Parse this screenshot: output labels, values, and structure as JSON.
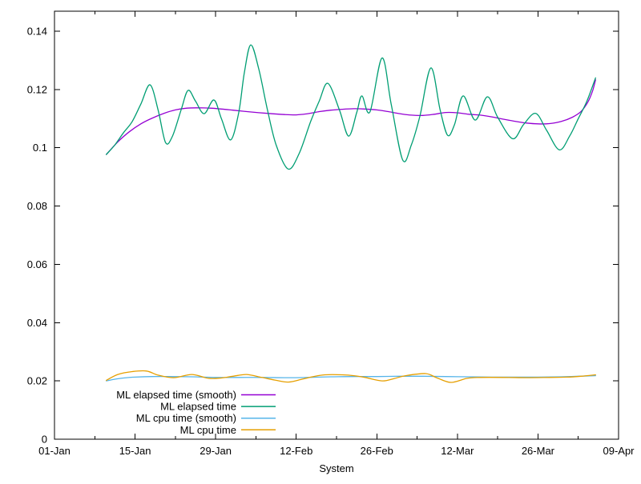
{
  "colors": {
    "background": "#ffffff",
    "axis": "#000000",
    "series_smooth_elapsed": "#9400D3",
    "series_elapsed": "#009E73",
    "series_smooth_cpu": "#56B4E9",
    "series_cpu": "#E69F00"
  },
  "chart_data": {
    "type": "line",
    "title": "",
    "xlabel": "System",
    "ylabel": "",
    "grid": false,
    "legend_position": "bottom-left-inside",
    "x_axis": {
      "unit": "date",
      "range_days": [
        0,
        98
      ],
      "ticks": [
        {
          "label": "01-Jan",
          "day": 0
        },
        {
          "label": "15-Jan",
          "day": 14
        },
        {
          "label": "29-Jan",
          "day": 28
        },
        {
          "label": "12-Feb",
          "day": 42
        },
        {
          "label": "26-Feb",
          "day": 56
        },
        {
          "label": "12-Mar",
          "day": 70
        },
        {
          "label": "26-Mar",
          "day": 84
        },
        {
          "label": "09-Apr",
          "day": 98
        }
      ],
      "minor_tick_days": [
        7,
        21,
        35,
        49,
        63,
        77,
        91
      ]
    },
    "y_axis": {
      "range": [
        0,
        0.14
      ],
      "ticks": [
        {
          "label": "0",
          "value": 0
        },
        {
          "label": "0.02",
          "value": 0.02
        },
        {
          "label": "0.04",
          "value": 0.04
        },
        {
          "label": "0.06",
          "value": 0.06
        },
        {
          "label": "0.08",
          "value": 0.08
        },
        {
          "label": "0.1",
          "value": 0.1
        },
        {
          "label": "0.12",
          "value": 0.12
        },
        {
          "label": "0.14",
          "value": 0.14
        }
      ]
    },
    "series": [
      {
        "name": "ML elapsed time (smooth)",
        "color": "#9400D3",
        "points": [
          [
            9,
            0.0977
          ],
          [
            11,
            0.102
          ],
          [
            13,
            0.1055
          ],
          [
            15,
            0.1082
          ],
          [
            17,
            0.1102
          ],
          [
            19,
            0.1118
          ],
          [
            21,
            0.113
          ],
          [
            23,
            0.1136
          ],
          [
            25,
            0.1137
          ],
          [
            27,
            0.1136
          ],
          [
            29,
            0.1133
          ],
          [
            31,
            0.1129
          ],
          [
            34,
            0.1123
          ],
          [
            37,
            0.1118
          ],
          [
            40,
            0.1114
          ],
          [
            42,
            0.1113
          ],
          [
            44,
            0.1117
          ],
          [
            46,
            0.1124
          ],
          [
            48,
            0.1129
          ],
          [
            50,
            0.1132
          ],
          [
            52,
            0.1134
          ],
          [
            54,
            0.1133
          ],
          [
            56,
            0.113
          ],
          [
            58,
            0.1124
          ],
          [
            60,
            0.1117
          ],
          [
            62,
            0.1112
          ],
          [
            64,
            0.1111
          ],
          [
            66,
            0.1115
          ],
          [
            68,
            0.1121
          ],
          [
            70,
            0.112
          ],
          [
            72,
            0.1115
          ],
          [
            74,
            0.1112
          ],
          [
            76,
            0.1106
          ],
          [
            78,
            0.1098
          ],
          [
            80,
            0.1091
          ],
          [
            82,
            0.1085
          ],
          [
            84,
            0.1082
          ],
          [
            86,
            0.1083
          ],
          [
            88,
            0.109
          ],
          [
            90,
            0.1105
          ],
          [
            91.5,
            0.1125
          ],
          [
            92.7,
            0.1158
          ],
          [
            93.5,
            0.1196
          ],
          [
            94,
            0.1233
          ]
        ]
      },
      {
        "name": "ML elapsed time",
        "color": "#009E73",
        "points": [
          [
            9,
            0.0977
          ],
          [
            10.5,
            0.101
          ],
          [
            12,
            0.1052
          ],
          [
            13.5,
            0.109
          ],
          [
            15,
            0.115
          ],
          [
            16.6,
            0.1216
          ],
          [
            18,
            0.113
          ],
          [
            19.3,
            0.1018
          ],
          [
            20.5,
            0.104
          ],
          [
            22,
            0.113
          ],
          [
            23.2,
            0.1197
          ],
          [
            24.5,
            0.116
          ],
          [
            26,
            0.1117
          ],
          [
            27.7,
            0.1164
          ],
          [
            29,
            0.11
          ],
          [
            30.6,
            0.1027
          ],
          [
            32,
            0.112
          ],
          [
            33,
            0.126
          ],
          [
            34.1,
            0.1353
          ],
          [
            35.5,
            0.127
          ],
          [
            37,
            0.113
          ],
          [
            38.5,
            0.101
          ],
          [
            40.6,
            0.0927
          ],
          [
            42.5,
            0.098
          ],
          [
            44.5,
            0.109
          ],
          [
            46,
            0.116
          ],
          [
            47.5,
            0.1221
          ],
          [
            49.5,
            0.113
          ],
          [
            51.1,
            0.104
          ],
          [
            52.5,
            0.112
          ],
          [
            53.4,
            0.1178
          ],
          [
            54.8,
            0.1123
          ],
          [
            56.9,
            0.1308
          ],
          [
            58.5,
            0.115
          ],
          [
            60.5,
            0.0958
          ],
          [
            62,
            0.101
          ],
          [
            63.5,
            0.111
          ],
          [
            65.4,
            0.1274
          ],
          [
            67,
            0.113
          ],
          [
            68.3,
            0.1043
          ],
          [
            69.5,
            0.108
          ],
          [
            71,
            0.1178
          ],
          [
            73.1,
            0.1095
          ],
          [
            75.2,
            0.1175
          ],
          [
            77,
            0.1105
          ],
          [
            79.6,
            0.1031
          ],
          [
            81.5,
            0.108
          ],
          [
            83.6,
            0.1118
          ],
          [
            85.5,
            0.106
          ],
          [
            87.7,
            0.0993
          ],
          [
            89.5,
            0.104
          ],
          [
            91,
            0.11
          ],
          [
            92.5,
            0.116
          ],
          [
            94,
            0.124
          ]
        ]
      },
      {
        "name": "ML cpu time (smooth)",
        "color": "#56B4E9",
        "points": [
          [
            9,
            0.02
          ],
          [
            10.5,
            0.0206
          ],
          [
            12,
            0.021
          ],
          [
            14,
            0.0213
          ],
          [
            17,
            0.0215
          ],
          [
            20,
            0.0215
          ],
          [
            24,
            0.0214
          ],
          [
            28,
            0.0212
          ],
          [
            32,
            0.0212
          ],
          [
            36,
            0.0212
          ],
          [
            40,
            0.0211
          ],
          [
            44,
            0.0212
          ],
          [
            48,
            0.0214
          ],
          [
            52,
            0.0215
          ],
          [
            56,
            0.0215
          ],
          [
            60,
            0.0216
          ],
          [
            64,
            0.0216
          ],
          [
            68,
            0.0215
          ],
          [
            72,
            0.0214
          ],
          [
            76,
            0.0213
          ],
          [
            80,
            0.0213
          ],
          [
            84,
            0.0213
          ],
          [
            88,
            0.0214
          ],
          [
            91,
            0.0216
          ],
          [
            94,
            0.0218
          ]
        ]
      },
      {
        "name": "ML cpu time",
        "color": "#E69F00",
        "points": [
          [
            9,
            0.0202
          ],
          [
            11,
            0.0222
          ],
          [
            13.5,
            0.0232
          ],
          [
            16,
            0.0234
          ],
          [
            18,
            0.022
          ],
          [
            20.7,
            0.0211
          ],
          [
            23.9,
            0.0222
          ],
          [
            26.7,
            0.0209
          ],
          [
            29,
            0.021
          ],
          [
            31,
            0.0216
          ],
          [
            33.4,
            0.0222
          ],
          [
            36,
            0.0212
          ],
          [
            38.3,
            0.0203
          ],
          [
            40.6,
            0.0196
          ],
          [
            43,
            0.0206
          ],
          [
            44.8,
            0.0214
          ],
          [
            47,
            0.0221
          ],
          [
            50,
            0.0221
          ],
          [
            52,
            0.0218
          ],
          [
            54,
            0.0212
          ],
          [
            56.9,
            0.02
          ],
          [
            59,
            0.0208
          ],
          [
            61,
            0.0218
          ],
          [
            64.5,
            0.0225
          ],
          [
            66.5,
            0.021
          ],
          [
            68.9,
            0.0195
          ],
          [
            71.7,
            0.0209
          ],
          [
            74,
            0.0212
          ],
          [
            78,
            0.0212
          ],
          [
            82,
            0.0211
          ],
          [
            86,
            0.0212
          ],
          [
            89,
            0.0213
          ],
          [
            91.5,
            0.0216
          ],
          [
            94,
            0.0221
          ]
        ]
      }
    ],
    "legend_entries": [
      "ML elapsed time (smooth)",
      "ML elapsed time",
      "ML cpu time (smooth)",
      "ML cpu time"
    ]
  }
}
